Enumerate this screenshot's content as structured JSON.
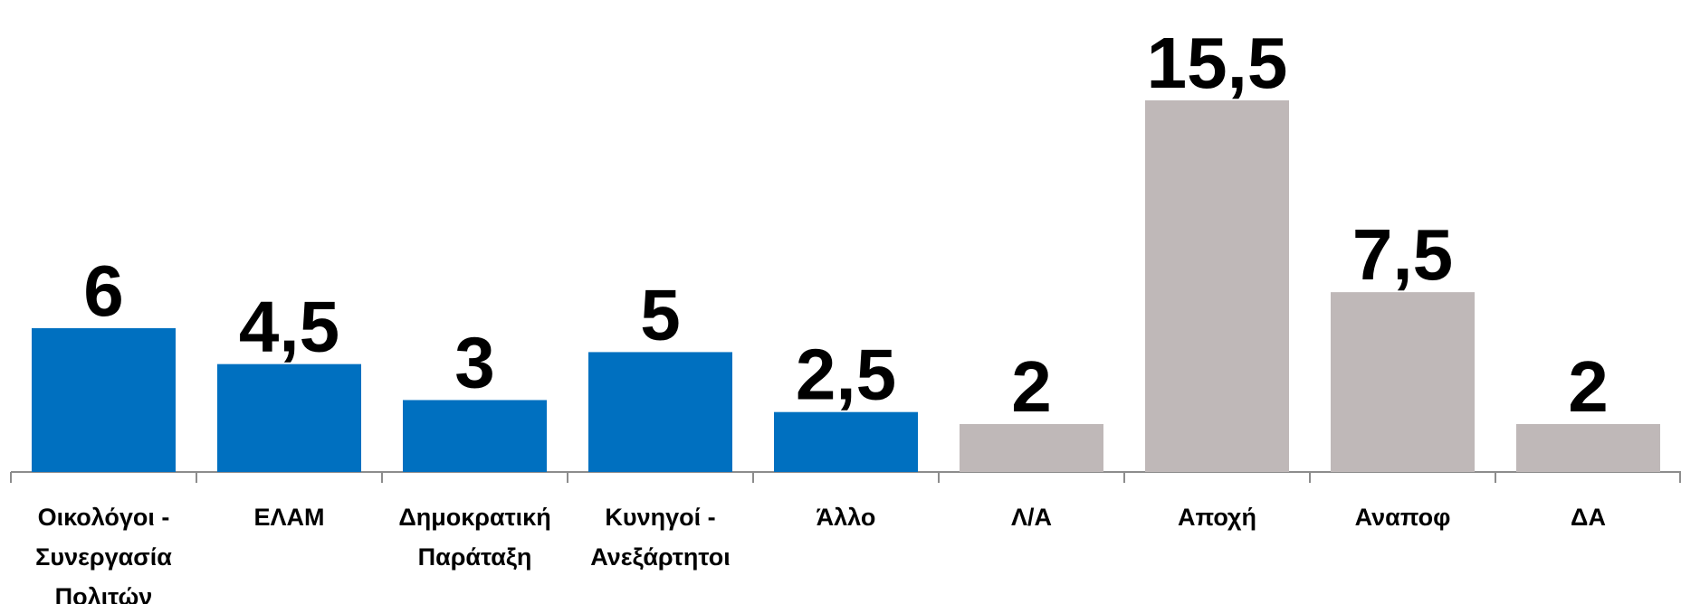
{
  "chart_data": {
    "type": "bar",
    "categories": [
      "Οικολόγοι - Συνεργασία Πολιτών",
      "ΕΛΑΜ",
      "Δημοκρατική Παράταξη",
      "Κυνηγοί - Ανεξάρτητοι",
      "Άλλο",
      "Λ/Α",
      "Αποχή",
      "Αναποφ",
      "ΔΑ"
    ],
    "values": [
      6,
      4.5,
      3,
      5,
      2.5,
      2,
      15.5,
      7.5,
      2
    ],
    "value_labels": [
      "6",
      "4,5",
      "3",
      "5",
      "2,5",
      "2",
      "15,5",
      "7,5",
      "2"
    ],
    "colors": [
      "#0070c0",
      "#0070c0",
      "#0070c0",
      "#0070c0",
      "#0070c0",
      "#bfb8b8",
      "#bfb8b8",
      "#bfb8b8",
      "#bfb8b8"
    ],
    "grid": false
  }
}
